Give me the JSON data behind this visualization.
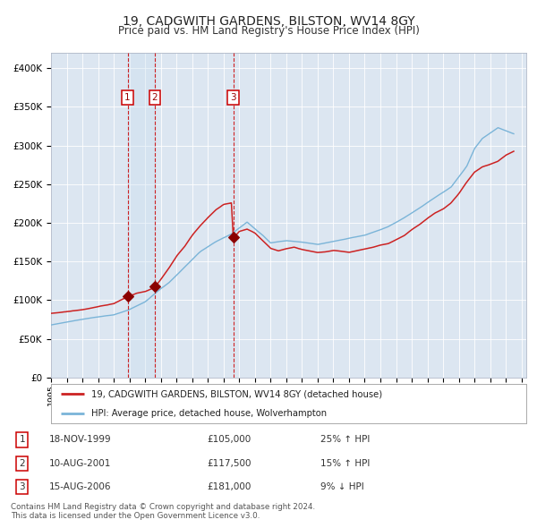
{
  "title": "19, CADGWITH GARDENS, BILSTON, WV14 8GY",
  "subtitle": "Price paid vs. HM Land Registry's House Price Index (HPI)",
  "ylim": [
    0,
    420000
  ],
  "yticks": [
    0,
    50000,
    100000,
    150000,
    200000,
    250000,
    300000,
    350000,
    400000
  ],
  "ytick_labels": [
    "£0",
    "£50K",
    "£100K",
    "£150K",
    "£200K",
    "£250K",
    "£300K",
    "£350K",
    "£400K"
  ],
  "background_color": "#ffffff",
  "plot_bg_color": "#dce6f1",
  "grid_color": "#ffffff",
  "hpi_color": "#7ab4d8",
  "price_color": "#cc2222",
  "marker_color": "#8b0000",
  "vline_color": "#cc0000",
  "span_color": "#c8dff0",
  "sale_dates_num": [
    1999.88,
    2001.61,
    2006.62
  ],
  "sale_prices": [
    105000,
    117500,
    181000
  ],
  "sale_labels": [
    "1",
    "2",
    "3"
  ],
  "legend_price_label": "19, CADGWITH GARDENS, BILSTON, WV14 8GY (detached house)",
  "legend_hpi_label": "HPI: Average price, detached house, Wolverhampton",
  "table_rows": [
    {
      "num": "1",
      "date": "18-NOV-1999",
      "price": "£105,000",
      "hpi": "25% ↑ HPI"
    },
    {
      "num": "2",
      "date": "10-AUG-2001",
      "price": "£117,500",
      "hpi": "15% ↑ HPI"
    },
    {
      "num": "3",
      "date": "15-AUG-2006",
      "price": "£181,000",
      "hpi": "9% ↓ HPI"
    }
  ],
  "footer": "Contains HM Land Registry data © Crown copyright and database right 2024.\nThis data is licensed under the Open Government Licence v3.0.",
  "title_fontsize": 10,
  "subtitle_fontsize": 8.5,
  "xstart": 1995,
  "xend": 2025.3
}
